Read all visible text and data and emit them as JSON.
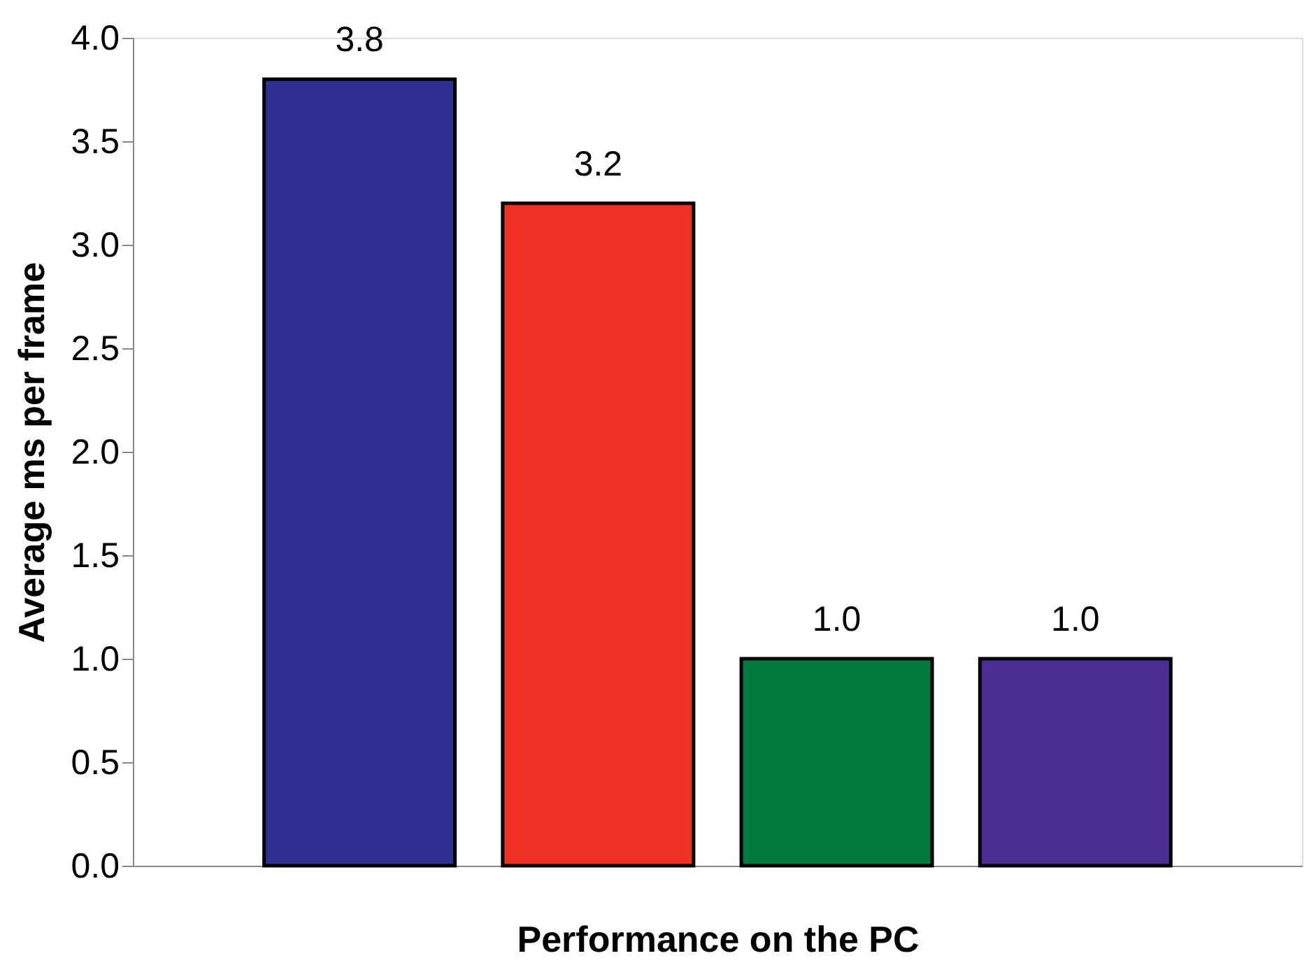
{
  "chart_data": {
    "type": "bar",
    "xlabel": "Performance on the PC",
    "ylabel": "Average ms per frame",
    "categories": [
      null,
      null,
      null,
      null
    ],
    "values": [
      3.8,
      3.2,
      1.0,
      1.0
    ],
    "colors": [
      "#2e3192",
      "#ee3124",
      "#007a3d",
      "#4b2e91"
    ],
    "ylim": [
      0,
      4
    ],
    "yticks": [
      {
        "value": 0,
        "label": "0.0"
      },
      0.5,
      {
        "value": 1,
        "label": "1.0"
      },
      1.5,
      {
        "value": 2,
        "label": "2.0"
      },
      2.5,
      {
        "value": 3,
        "label": "3.0"
      },
      3.5,
      {
        "value": 4,
        "label": "4.0"
      }
    ],
    "value_labels": [
      "3.8",
      "3.2",
      "1.0",
      "1.0"
    ],
    "grid": false,
    "tick_labels": "y"
  }
}
